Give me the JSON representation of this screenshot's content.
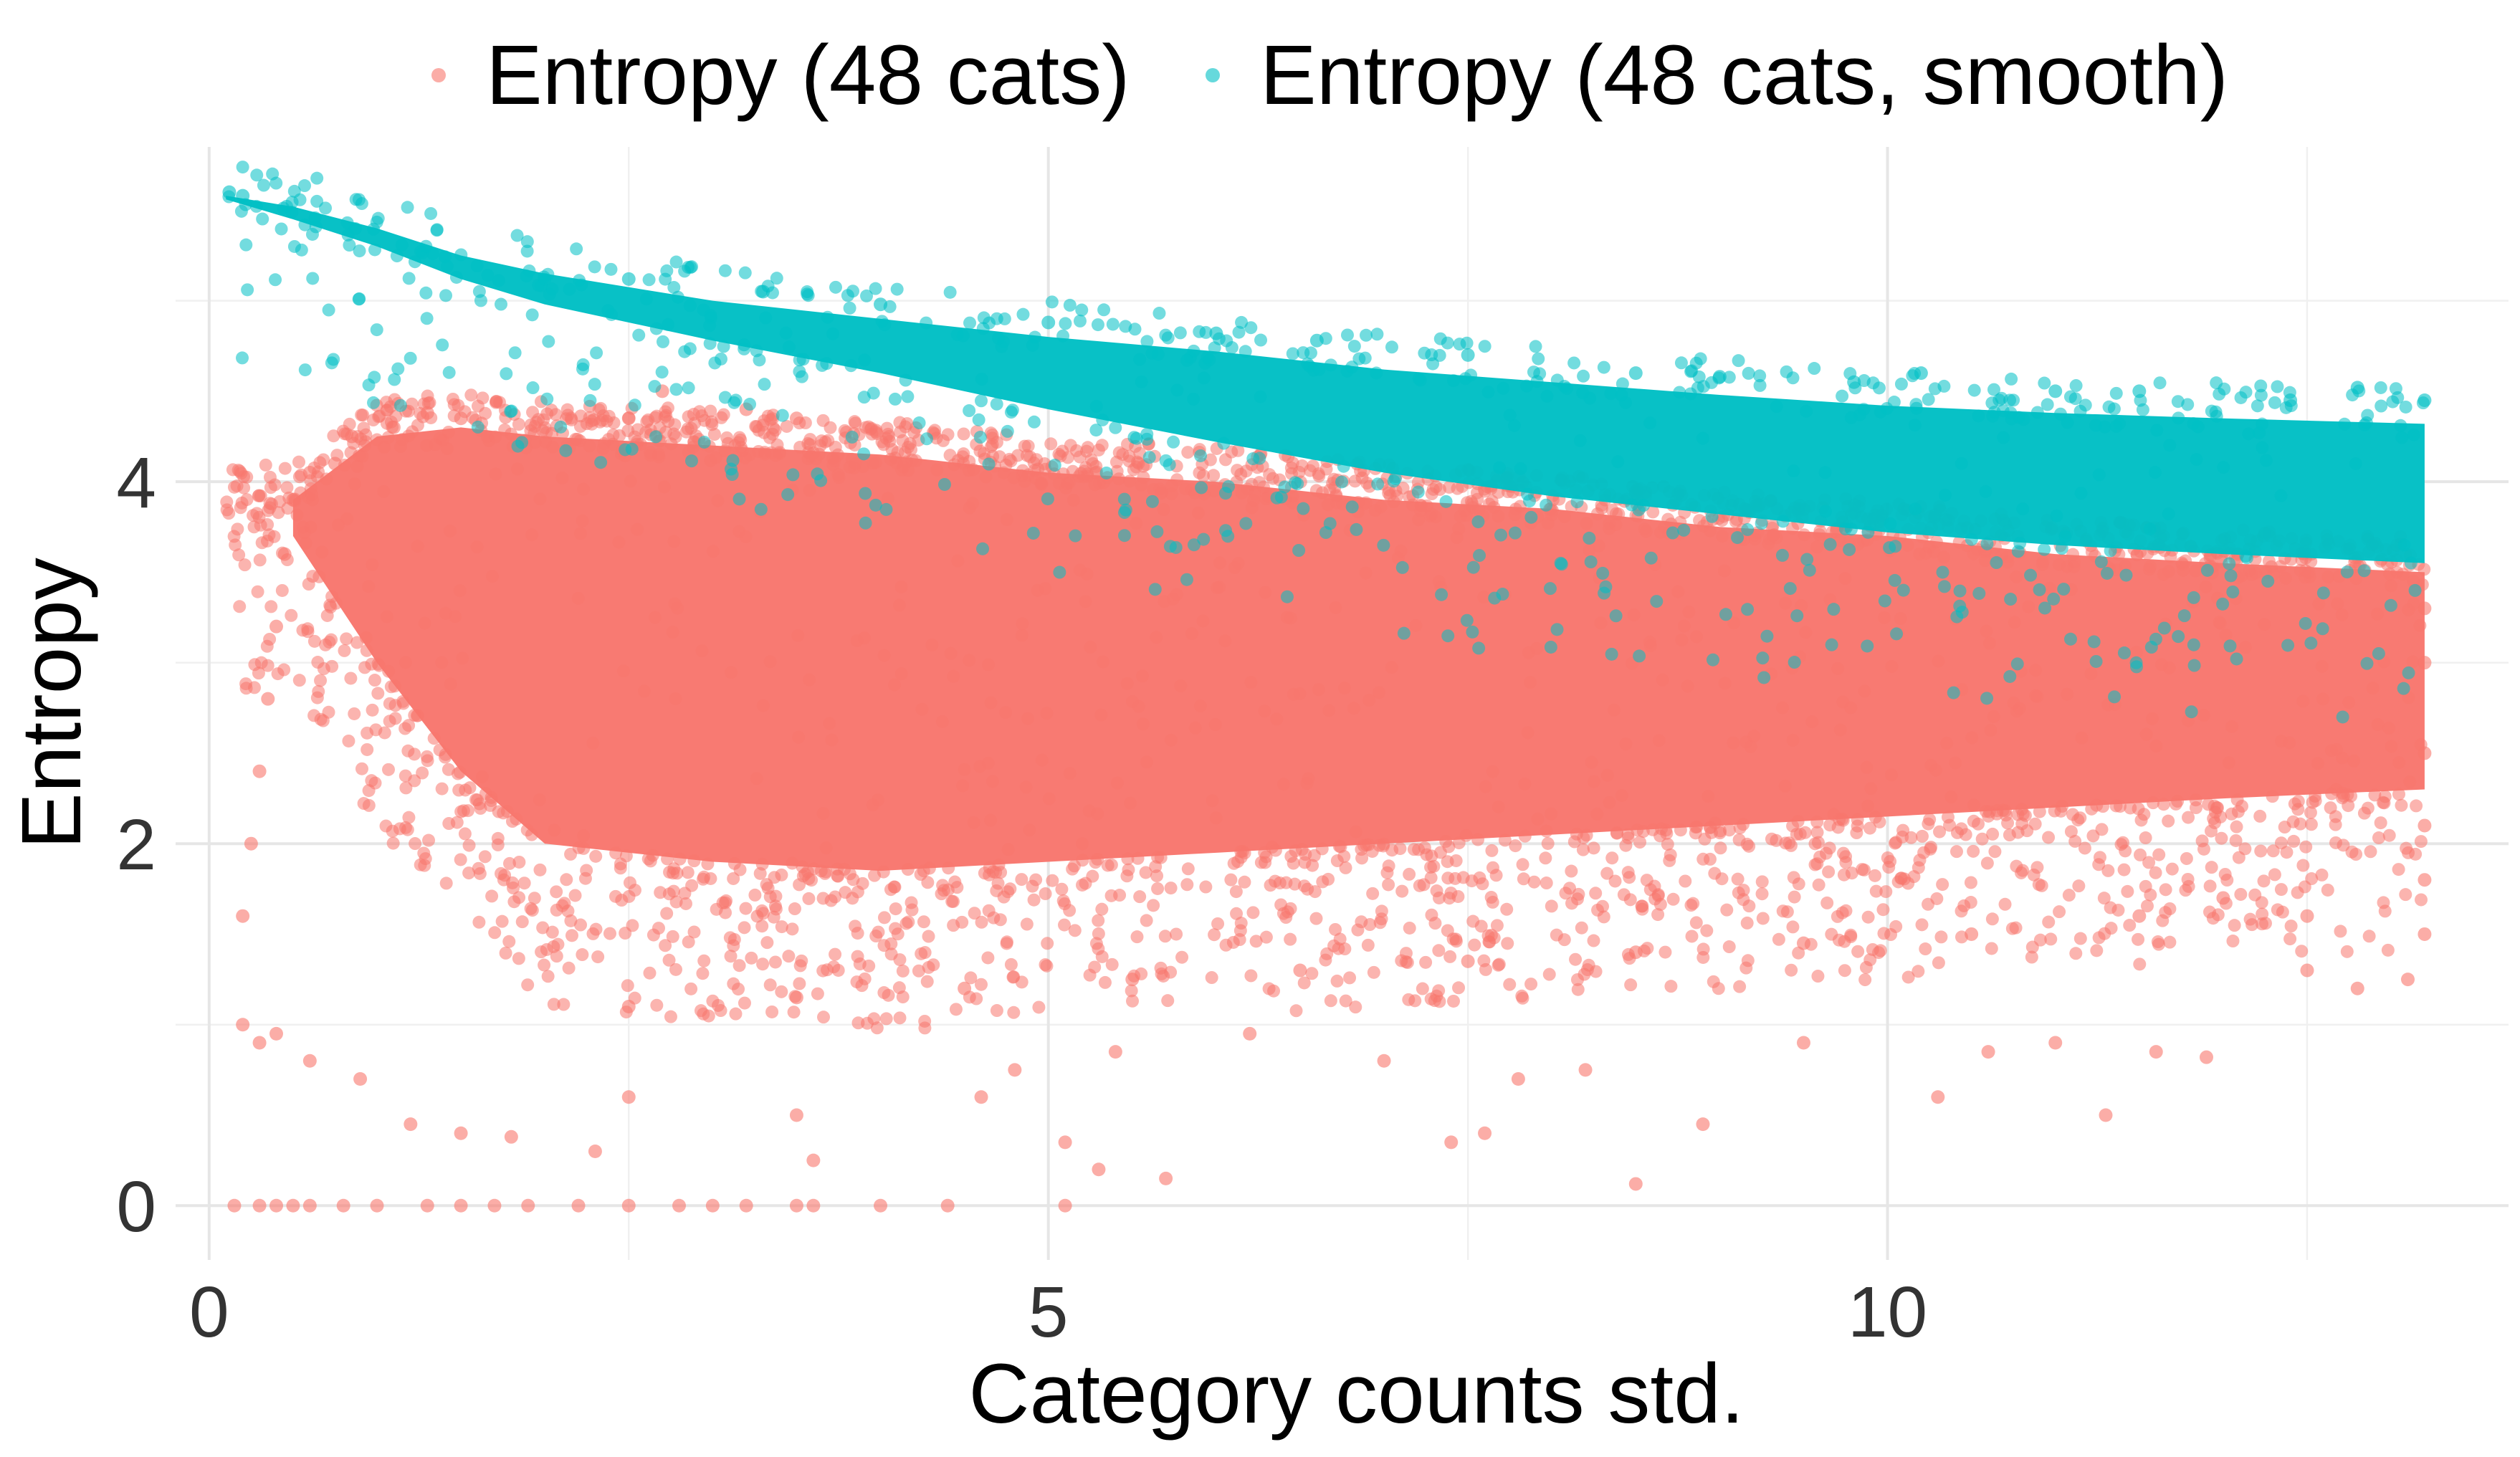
{
  "chart_data": {
    "type": "scatter",
    "xlabel": "Category counts std.",
    "ylabel": "Entropy",
    "xlim": [
      -0.2,
      13.7
    ],
    "ylim": [
      -0.3,
      5.85
    ],
    "x_ticks": [
      0,
      5,
      10
    ],
    "x_tick_labels": [
      "0",
      "5",
      "10"
    ],
    "y_ticks": [
      0,
      2,
      4
    ],
    "y_tick_labels": [
      "0",
      "2",
      "4"
    ],
    "grid": true,
    "legend_position": "top",
    "series": [
      {
        "name": "Entropy (48 cats)",
        "color": "#F8766D",
        "x_range": [
          0.1,
          13.2
        ],
        "dense_band": {
          "x": [
            0.5,
            1.0,
            1.5,
            2.0,
            3.0,
            4.0,
            5.0,
            6.0,
            7.0,
            8.0,
            9.0,
            10.0,
            11.0,
            12.0,
            13.2
          ],
          "upper": [
            3.9,
            4.25,
            4.3,
            4.25,
            4.2,
            4.15,
            4.05,
            4.0,
            3.9,
            3.85,
            3.75,
            3.7,
            3.6,
            3.55,
            3.5
          ],
          "lower": [
            3.7,
            3.0,
            2.4,
            2.0,
            1.9,
            1.85,
            1.9,
            1.95,
            2.0,
            2.05,
            2.1,
            2.15,
            2.2,
            2.25,
            2.3
          ]
        },
        "sample_points": [
          [
            0.15,
            0
          ],
          [
            0.3,
            0
          ],
          [
            0.4,
            0
          ],
          [
            0.5,
            0
          ],
          [
            0.6,
            0
          ],
          [
            0.8,
            0
          ],
          [
            1.0,
            0
          ],
          [
            1.3,
            0
          ],
          [
            1.5,
            0
          ],
          [
            1.7,
            0
          ],
          [
            1.9,
            0
          ],
          [
            2.2,
            0
          ],
          [
            2.5,
            0
          ],
          [
            2.8,
            0
          ],
          [
            3.0,
            0
          ],
          [
            3.2,
            0
          ],
          [
            3.5,
            0
          ],
          [
            3.6,
            0
          ],
          [
            4.0,
            0
          ],
          [
            4.4,
            0
          ],
          [
            5.1,
            0
          ],
          [
            5.1,
            0.35
          ],
          [
            5.3,
            0.2
          ],
          [
            5.7,
            0.15
          ],
          [
            8.5,
            0.12
          ],
          [
            7.4,
            0.35
          ],
          [
            7.6,
            0.4
          ],
          [
            8.9,
            0.45
          ],
          [
            10.3,
            0.6
          ],
          [
            11.3,
            0.5
          ],
          [
            0.2,
            1.0
          ],
          [
            0.3,
            0.9
          ],
          [
            0.4,
            0.95
          ],
          [
            0.6,
            0.8
          ],
          [
            0.9,
            0.7
          ],
          [
            1.2,
            0.45
          ],
          [
            1.5,
            0.4
          ],
          [
            1.8,
            0.38
          ],
          [
            2.3,
            0.3
          ],
          [
            2.5,
            0.6
          ],
          [
            3.5,
            0.5
          ],
          [
            3.6,
            0.25
          ],
          [
            4.6,
            0.6
          ],
          [
            4.8,
            0.75
          ],
          [
            5.4,
            0.85
          ],
          [
            6.2,
            0.95
          ],
          [
            7.0,
            0.8
          ],
          [
            7.8,
            0.7
          ],
          [
            8.2,
            0.75
          ],
          [
            9.5,
            0.9
          ],
          [
            10.6,
            0.85
          ],
          [
            11.0,
            0.9
          ],
          [
            11.6,
            0.85
          ],
          [
            11.9,
            0.82
          ],
          [
            12.8,
            1.2
          ],
          [
            13.1,
            1.25
          ],
          [
            12.5,
            1.3
          ],
          [
            0.2,
            1.6
          ],
          [
            0.25,
            2.0
          ],
          [
            0.3,
            2.4
          ],
          [
            0.35,
            2.8
          ],
          [
            0.4,
            3.2
          ],
          [
            0.45,
            3.6
          ],
          [
            0.5,
            3.9
          ],
          [
            0.6,
            4.05
          ],
          [
            0.75,
            4.1
          ],
          [
            0.85,
            4.25
          ],
          [
            1.1,
            4.3
          ],
          [
            1.3,
            4.38
          ],
          [
            1.5,
            4.35
          ],
          [
            2.5,
            4.35
          ],
          [
            2.7,
            4.5
          ],
          [
            3.2,
            4.4
          ],
          [
            3.5,
            4.35
          ],
          [
            13.2,
            1.5
          ],
          [
            13.2,
            1.8
          ],
          [
            13.2,
            2.1
          ],
          [
            13.2,
            2.5
          ],
          [
            13.2,
            3.0
          ],
          [
            13.2,
            3.3
          ],
          [
            12.5,
            1.6
          ],
          [
            12.0,
            1.7
          ],
          [
            11.5,
            1.6
          ],
          [
            10.5,
            1.5
          ],
          [
            9.5,
            1.45
          ],
          [
            8.5,
            1.4
          ],
          [
            7.5,
            1.35
          ],
          [
            6.5,
            1.3
          ],
          [
            5.5,
            1.25
          ],
          [
            4.5,
            1.2
          ],
          [
            3.5,
            1.15
          ],
          [
            2.5,
            1.1
          ]
        ]
      },
      {
        "name": "Entropy (48 cats, smooth)",
        "color": "#00BFC4",
        "x_range": [
          0.1,
          13.2
        ],
        "dense_band": {
          "x": [
            0.1,
            0.5,
            1.0,
            1.5,
            2.0,
            3.0,
            4.0,
            5.0,
            6.0,
            7.0,
            8.0,
            9.0,
            10.0,
            11.0,
            12.0,
            13.2
          ],
          "upper": [
            5.58,
            5.52,
            5.4,
            5.25,
            5.15,
            5.0,
            4.9,
            4.8,
            4.72,
            4.62,
            4.55,
            4.48,
            4.42,
            4.38,
            4.35,
            4.32
          ],
          "lower": [
            5.56,
            5.45,
            5.3,
            5.12,
            4.98,
            4.78,
            4.6,
            4.4,
            4.22,
            4.05,
            3.92,
            3.82,
            3.72,
            3.65,
            3.6,
            3.55
          ]
        },
        "sample_points": [
          [
            0.12,
            5.6
          ],
          [
            0.2,
            5.58
          ],
          [
            2.5,
            5.12
          ],
          [
            3.3,
            5.05
          ],
          [
            4.0,
            4.98
          ],
          [
            5.0,
            4.88
          ],
          [
            6.0,
            4.82
          ],
          [
            6.6,
            4.78
          ],
          [
            7.5,
            4.7
          ],
          [
            8.5,
            4.6
          ],
          [
            9.0,
            4.58
          ],
          [
            9.8,
            4.55
          ],
          [
            10.2,
            4.6
          ],
          [
            11.0,
            4.5
          ],
          [
            11.5,
            4.5
          ],
          [
            12.4,
            4.45
          ],
          [
            12.8,
            4.52
          ],
          [
            13.2,
            4.45
          ]
        ]
      }
    ]
  }
}
